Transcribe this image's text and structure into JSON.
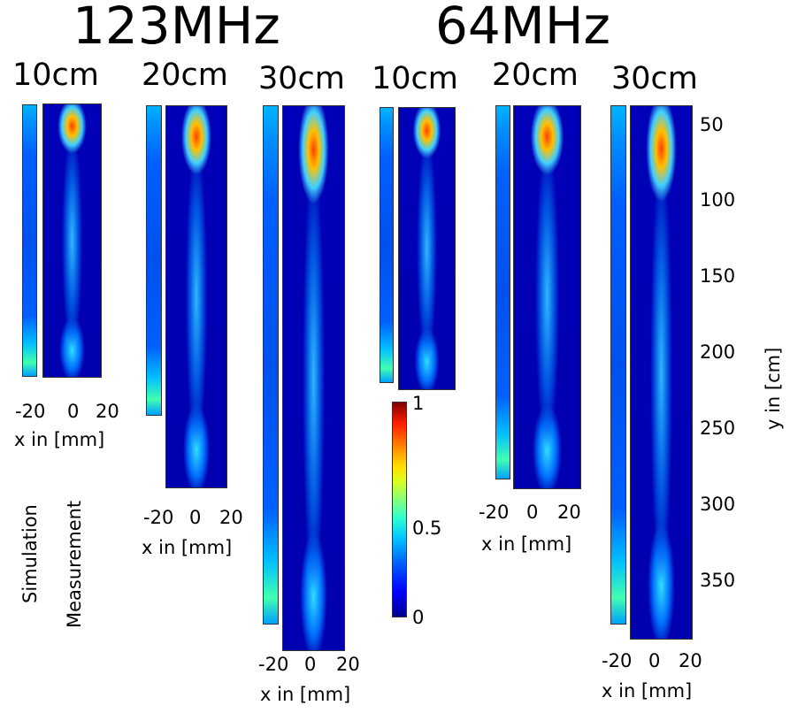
{
  "figure": {
    "freq_labels": [
      "123MHz",
      "64MHz"
    ],
    "length_labels": [
      "10cm",
      "20cm",
      "30cm",
      "10cm",
      "20cm",
      "30cm"
    ],
    "x_tick_labels": [
      "-20",
      "0",
      "20"
    ],
    "x_axis_label": "x in [mm]",
    "y_axis_label": "y in [cm]",
    "y_tick_labels": [
      "50",
      "100",
      "150",
      "200",
      "250",
      "300",
      "350"
    ],
    "row_labels": {
      "simulation": "Simulation",
      "measurement": "Measurement"
    },
    "colorbar_ticks": [
      "1",
      "0.5",
      "0"
    ]
  },
  "chart_data": {
    "type": "heatmap",
    "title": "",
    "xlabel": "x in [mm]",
    "ylabel": "y in [cm]",
    "xlim": [
      -25,
      25
    ],
    "ylim": [
      30,
      385
    ],
    "y_axis_reversed": true,
    "colorbar": {
      "min": 0,
      "max": 1,
      "ticks": [
        0,
        0.5,
        1
      ],
      "colormap": "jet"
    },
    "panels": [
      {
        "frequency": "123MHz",
        "length": "10cm",
        "panel": "Simulation",
        "y_range": [
          30,
          205
        ],
        "approx_peaks_y": [
          60,
          185
        ]
      },
      {
        "frequency": "123MHz",
        "length": "10cm",
        "panel": "Measurement",
        "y_range": [
          30,
          205
        ],
        "approx_peaks_y": [
          60,
          185
        ]
      },
      {
        "frequency": "123MHz",
        "length": "20cm",
        "panel": "Simulation",
        "y_range": [
          30,
          285
        ],
        "approx_peaks_y": [
          45,
          255
        ]
      },
      {
        "frequency": "123MHz",
        "length": "20cm",
        "panel": "Measurement",
        "y_range": [
          30,
          285
        ],
        "approx_peaks_y": [
          70,
          265
        ]
      },
      {
        "frequency": "123MHz",
        "length": "30cm",
        "panel": "Simulation",
        "y_range": [
          30,
          375
        ],
        "approx_peaks_y": [
          50,
          365
        ]
      },
      {
        "frequency": "123MHz",
        "length": "30cm",
        "panel": "Measurement",
        "y_range": [
          30,
          385
        ],
        "approx_peaks_y": [
          55,
          370
        ]
      },
      {
        "frequency": "64MHz",
        "length": "10cm",
        "panel": "Simulation",
        "y_range": [
          30,
          205
        ],
        "approx_peaks_y": [
          60,
          190
        ]
      },
      {
        "frequency": "64MHz",
        "length": "10cm",
        "panel": "Measurement",
        "y_range": [
          30,
          225
        ],
        "approx_peaks_y": [
          55,
          190
        ]
      },
      {
        "frequency": "64MHz",
        "length": "20cm",
        "panel": "Simulation",
        "y_range": [
          30,
          280
        ],
        "approx_peaks_y": [
          50,
          270
        ]
      },
      {
        "frequency": "64MHz",
        "length": "20cm",
        "panel": "Measurement",
        "y_range": [
          30,
          280
        ],
        "approx_peaks_y": [
          45,
          270
        ]
      },
      {
        "frequency": "64MHz",
        "length": "30cm",
        "panel": "Simulation",
        "y_range": [
          30,
          375
        ],
        "approx_peaks_y": [
          55,
          365
        ]
      },
      {
        "frequency": "64MHz",
        "length": "30cm",
        "panel": "Measurement",
        "y_range": [
          30,
          385
        ],
        "approx_peaks_y": [
          60,
          375
        ]
      }
    ]
  }
}
